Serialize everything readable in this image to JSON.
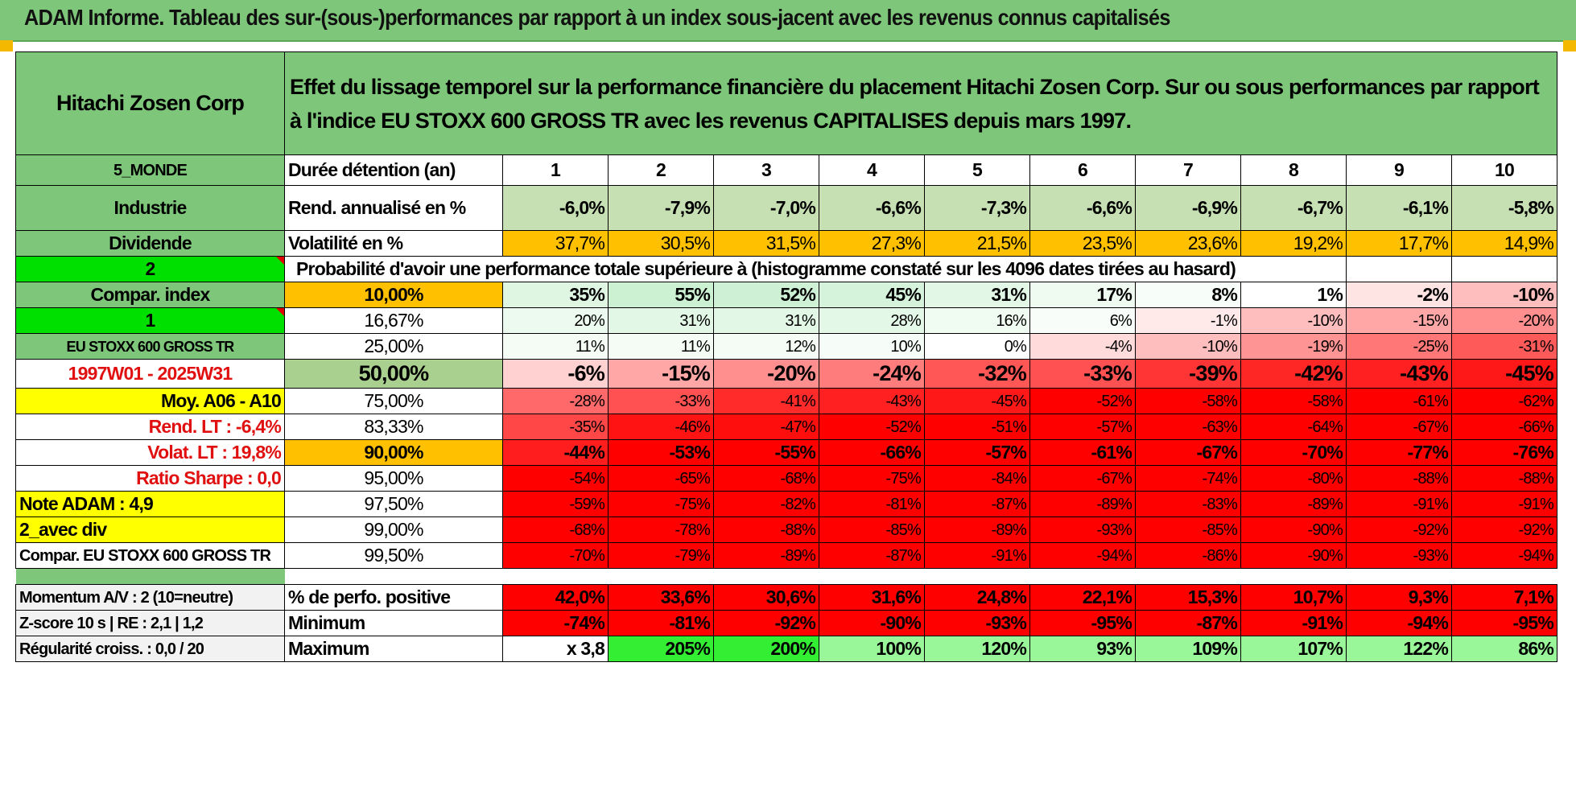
{
  "title": "ADAM Informe. Tableau des sur-(sous-)performances par rapport à un index sous-jacent avec les revenus connus capitalisés",
  "header": {
    "company": "Hitachi Zosen Corp",
    "description": "Effet du lissage temporel sur la performance financière du placement Hitachi Zosen Corp. Sur ou sous performances par rapport à l'indice EU STOXX 600 GROSS TR avec les revenus CAPITALISES depuis mars 1997."
  },
  "left": {
    "region": "5_MONDE",
    "sector": "Industrie",
    "dividend": "Dividende",
    "val_2": "2",
    "compar_index": "Compar. index",
    "val_1": "1",
    "index_name": "EU STOXX 600 GROSS TR",
    "period": "1997W01 - 2025W31",
    "moy": "Moy. A06 - A10",
    "rend_lt": "Rend. LT :    -6,4%",
    "volat_lt": "Volat. LT :    19,8%",
    "sharpe": "Ratio Sharpe :     0,0",
    "note": "Note ADAM : 4,9",
    "avec_div": "2_avec div",
    "compar_full": "Compar. EU STOXX 600 GROSS TR",
    "momentum": "Momentum A/V : 2 (10=neutre)",
    "zscore": "Z-score 10 s | RE : 2,1 | 1,2",
    "regularite": "Régularité croiss. : 0,0 / 20"
  },
  "rows": {
    "duree": {
      "label": "Durée détention (an)",
      "values": [
        "1",
        "2",
        "3",
        "4",
        "5",
        "6",
        "7",
        "8",
        "9",
        "10"
      ]
    },
    "rend": {
      "label": "Rend. annualisé en %",
      "values": [
        "-6,0%",
        "-7,9%",
        "-7,0%",
        "-6,6%",
        "-7,3%",
        "-6,6%",
        "-6,9%",
        "-6,7%",
        "-6,1%",
        "-5,8%"
      ]
    },
    "vol": {
      "label": "Volatilité en %",
      "values": [
        "37,7%",
        "30,5%",
        "31,5%",
        "27,3%",
        "21,5%",
        "23,5%",
        "23,6%",
        "19,2%",
        "17,7%",
        "14,9%"
      ]
    },
    "prob_title": "Probabilité d'avoir une performance totale supérieure à (histogramme constaté sur les 4096 dates tirées au hasard)"
  },
  "quantiles": [
    {
      "q": "10,00%",
      "values": [
        "35%",
        "55%",
        "52%",
        "45%",
        "31%",
        "17%",
        "8%",
        "1%",
        "-2%",
        "-10%"
      ]
    },
    {
      "q": "16,67%",
      "values": [
        "20%",
        "31%",
        "31%",
        "28%",
        "16%",
        "6%",
        "-1%",
        "-10%",
        "-15%",
        "-20%"
      ]
    },
    {
      "q": "25,00%",
      "values": [
        "11%",
        "11%",
        "12%",
        "10%",
        "0%",
        "-4%",
        "-10%",
        "-19%",
        "-25%",
        "-31%"
      ]
    },
    {
      "q": "50,00%",
      "values": [
        "-6%",
        "-15%",
        "-20%",
        "-24%",
        "-32%",
        "-33%",
        "-39%",
        "-42%",
        "-43%",
        "-45%"
      ]
    },
    {
      "q": "75,00%",
      "values": [
        "-28%",
        "-33%",
        "-41%",
        "-43%",
        "-45%",
        "-52%",
        "-58%",
        "-58%",
        "-61%",
        "-62%"
      ]
    },
    {
      "q": "83,33%",
      "values": [
        "-35%",
        "-46%",
        "-47%",
        "-52%",
        "-51%",
        "-57%",
        "-63%",
        "-64%",
        "-67%",
        "-66%"
      ]
    },
    {
      "q": "90,00%",
      "values": [
        "-44%",
        "-53%",
        "-55%",
        "-66%",
        "-57%",
        "-61%",
        "-67%",
        "-70%",
        "-77%",
        "-76%"
      ]
    },
    {
      "q": "95,00%",
      "values": [
        "-54%",
        "-65%",
        "-68%",
        "-75%",
        "-84%",
        "-67%",
        "-74%",
        "-80%",
        "-88%",
        "-88%"
      ]
    },
    {
      "q": "97,50%",
      "values": [
        "-59%",
        "-75%",
        "-82%",
        "-81%",
        "-87%",
        "-89%",
        "-83%",
        "-89%",
        "-91%",
        "-91%"
      ]
    },
    {
      "q": "99,00%",
      "values": [
        "-68%",
        "-78%",
        "-88%",
        "-85%",
        "-89%",
        "-93%",
        "-85%",
        "-90%",
        "-92%",
        "-92%"
      ]
    },
    {
      "q": "99,50%",
      "values": [
        "-70%",
        "-79%",
        "-89%",
        "-87%",
        "-91%",
        "-94%",
        "-86%",
        "-90%",
        "-93%",
        "-94%"
      ]
    }
  ],
  "stats": {
    "pos": {
      "label": "% de perfo. positive",
      "values": [
        "42,0%",
        "33,6%",
        "30,6%",
        "31,6%",
        "24,8%",
        "22,1%",
        "15,3%",
        "10,7%",
        "9,3%",
        "7,1%"
      ]
    },
    "min": {
      "label": "Minimum",
      "values": [
        "-74%",
        "-81%",
        "-92%",
        "-90%",
        "-93%",
        "-95%",
        "-87%",
        "-91%",
        "-94%",
        "-95%"
      ]
    },
    "max": {
      "label": "Maximum",
      "values": [
        "x 3,8",
        "205%",
        "200%",
        "100%",
        "120%",
        "93%",
        "109%",
        "107%",
        "122%",
        "86%"
      ]
    }
  },
  "colors": {
    "header_green": "#7ec77a",
    "orange": "#ffc000",
    "yellow": "#ffff00",
    "bright_green": "#00e000",
    "red": "#ff0000",
    "label_red": "#e01010"
  }
}
